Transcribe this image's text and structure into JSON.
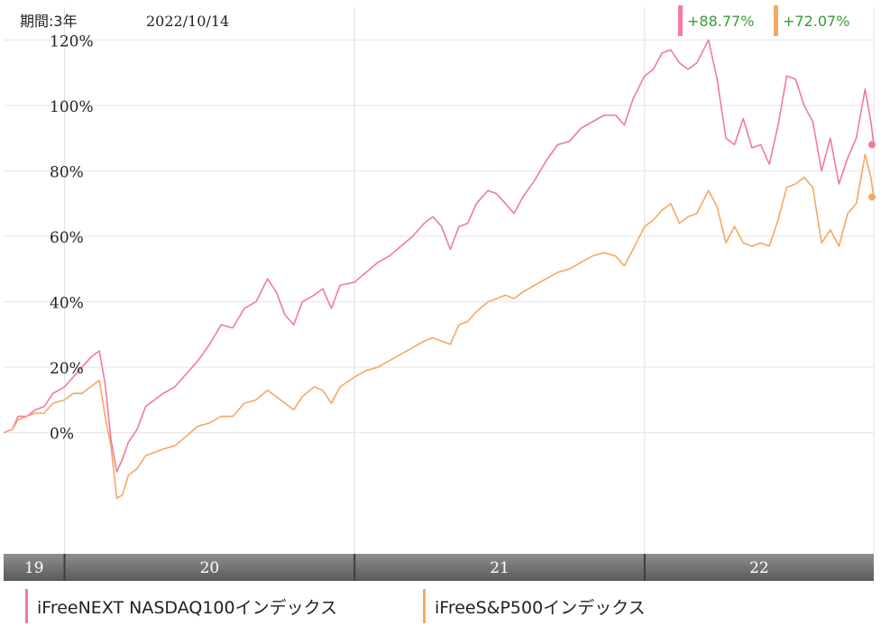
{
  "header": {
    "period_label": "期間:3年",
    "date_label": "2022/10/14"
  },
  "badges": [
    {
      "text": "+88.77%",
      "color": "#f07aa0"
    },
    {
      "text": "+72.07%",
      "color": "#f5a862"
    }
  ],
  "colors": {
    "series_1": "#f07aa0",
    "series_2": "#f5a862",
    "badge_text": "#3a9a3a"
  },
  "legend": [
    {
      "label": "iFreeNEXT NASDAQ100インデックス",
      "color": "#f07aa0"
    },
    {
      "label": "iFreeS&P500インデックス",
      "color": "#f5a862"
    }
  ],
  "chart_data": {
    "type": "line",
    "title": "",
    "xlabel": "",
    "ylabel": "",
    "yticks": [
      "120%",
      "100%",
      "80%",
      "60%",
      "40%",
      "20%",
      "0%"
    ],
    "ytick_values": [
      120,
      100,
      80,
      60,
      40,
      20,
      0
    ],
    "ylim": [
      -37,
      130
    ],
    "xlim": [
      2019.79,
      2022.79
    ],
    "year_labels": [
      {
        "label": "19",
        "x": 2019.79
      },
      {
        "label": "20",
        "x": 2020.0
      },
      {
        "label": "21",
        "x": 2021.0
      },
      {
        "label": "22",
        "x": 2022.0
      }
    ],
    "grid": true,
    "legend_position": "bottom",
    "series": [
      {
        "name": "iFreeNEXT NASDAQ100インデックス",
        "color": "#f07aa0",
        "points": [
          [
            2019.79,
            0
          ],
          [
            2019.82,
            1
          ],
          [
            2019.84,
            5
          ],
          [
            2019.87,
            5
          ],
          [
            2019.9,
            7
          ],
          [
            2019.93,
            8
          ],
          [
            2019.96,
            12
          ],
          [
            2020.0,
            14
          ],
          [
            2020.03,
            17
          ],
          [
            2020.06,
            20
          ],
          [
            2020.09,
            23
          ],
          [
            2020.12,
            25
          ],
          [
            2020.14,
            15
          ],
          [
            2020.16,
            -2
          ],
          [
            2020.18,
            -12
          ],
          [
            2020.2,
            -8
          ],
          [
            2020.22,
            -3
          ],
          [
            2020.25,
            1
          ],
          [
            2020.28,
            8
          ],
          [
            2020.31,
            10
          ],
          [
            2020.34,
            12
          ],
          [
            2020.38,
            14
          ],
          [
            2020.42,
            18
          ],
          [
            2020.46,
            22
          ],
          [
            2020.5,
            27
          ],
          [
            2020.54,
            33
          ],
          [
            2020.58,
            32
          ],
          [
            2020.62,
            38
          ],
          [
            2020.66,
            40
          ],
          [
            2020.7,
            47
          ],
          [
            2020.73,
            43
          ],
          [
            2020.76,
            36
          ],
          [
            2020.79,
            33
          ],
          [
            2020.82,
            40
          ],
          [
            2020.86,
            42
          ],
          [
            2020.89,
            44
          ],
          [
            2020.92,
            38
          ],
          [
            2020.95,
            45
          ],
          [
            2021.0,
            46
          ],
          [
            2021.04,
            49
          ],
          [
            2021.08,
            52
          ],
          [
            2021.12,
            54
          ],
          [
            2021.16,
            57
          ],
          [
            2021.2,
            60
          ],
          [
            2021.24,
            64
          ],
          [
            2021.27,
            66
          ],
          [
            2021.3,
            63
          ],
          [
            2021.33,
            56
          ],
          [
            2021.36,
            63
          ],
          [
            2021.39,
            64
          ],
          [
            2021.42,
            70
          ],
          [
            2021.46,
            74
          ],
          [
            2021.49,
            73
          ],
          [
            2021.52,
            70
          ],
          [
            2021.55,
            67
          ],
          [
            2021.58,
            72
          ],
          [
            2021.62,
            77
          ],
          [
            2021.66,
            83
          ],
          [
            2021.7,
            88
          ],
          [
            2021.74,
            89
          ],
          [
            2021.78,
            93
          ],
          [
            2021.82,
            95
          ],
          [
            2021.86,
            97
          ],
          [
            2021.9,
            97
          ],
          [
            2021.93,
            94
          ],
          [
            2021.96,
            102
          ],
          [
            2022.0,
            109
          ],
          [
            2022.03,
            111
          ],
          [
            2022.06,
            116
          ],
          [
            2022.09,
            117
          ],
          [
            2022.12,
            113
          ],
          [
            2022.15,
            111
          ],
          [
            2022.18,
            113
          ],
          [
            2022.22,
            120
          ],
          [
            2022.25,
            108
          ],
          [
            2022.28,
            90
          ],
          [
            2022.31,
            88
          ],
          [
            2022.34,
            96
          ],
          [
            2022.37,
            87
          ],
          [
            2022.4,
            88
          ],
          [
            2022.43,
            82
          ],
          [
            2022.46,
            94
          ],
          [
            2022.49,
            109
          ],
          [
            2022.52,
            108
          ],
          [
            2022.55,
            100
          ],
          [
            2022.58,
            95
          ],
          [
            2022.61,
            80
          ],
          [
            2022.64,
            90
          ],
          [
            2022.67,
            76
          ],
          [
            2022.7,
            84
          ],
          [
            2022.73,
            90
          ],
          [
            2022.76,
            105
          ],
          [
            2022.78,
            95
          ],
          [
            2022.79,
            88
          ]
        ]
      },
      {
        "name": "iFreeS&P500インデックス",
        "color": "#f5a862",
        "points": [
          [
            2019.79,
            0
          ],
          [
            2019.82,
            1
          ],
          [
            2019.84,
            4
          ],
          [
            2019.87,
            5
          ],
          [
            2019.9,
            6
          ],
          [
            2019.93,
            6
          ],
          [
            2019.96,
            9
          ],
          [
            2020.0,
            10
          ],
          [
            2020.03,
            12
          ],
          [
            2020.06,
            12
          ],
          [
            2020.09,
            14
          ],
          [
            2020.12,
            16
          ],
          [
            2020.14,
            5
          ],
          [
            2020.16,
            -4
          ],
          [
            2020.18,
            -20
          ],
          [
            2020.2,
            -19
          ],
          [
            2020.22,
            -13
          ],
          [
            2020.25,
            -11
          ],
          [
            2020.28,
            -7
          ],
          [
            2020.31,
            -6
          ],
          [
            2020.34,
            -5
          ],
          [
            2020.38,
            -4
          ],
          [
            2020.42,
            -1
          ],
          [
            2020.46,
            2
          ],
          [
            2020.5,
            3
          ],
          [
            2020.54,
            5
          ],
          [
            2020.58,
            5
          ],
          [
            2020.62,
            9
          ],
          [
            2020.66,
            10
          ],
          [
            2020.7,
            13
          ],
          [
            2020.73,
            11
          ],
          [
            2020.76,
            9
          ],
          [
            2020.79,
            7
          ],
          [
            2020.82,
            11
          ],
          [
            2020.86,
            14
          ],
          [
            2020.89,
            13
          ],
          [
            2020.92,
            9
          ],
          [
            2020.95,
            14
          ],
          [
            2021.0,
            17
          ],
          [
            2021.04,
            19
          ],
          [
            2021.08,
            20
          ],
          [
            2021.12,
            22
          ],
          [
            2021.16,
            24
          ],
          [
            2021.2,
            26
          ],
          [
            2021.24,
            28
          ],
          [
            2021.27,
            29
          ],
          [
            2021.3,
            28
          ],
          [
            2021.33,
            27
          ],
          [
            2021.36,
            33
          ],
          [
            2021.39,
            34
          ],
          [
            2021.42,
            37
          ],
          [
            2021.46,
            40
          ],
          [
            2021.49,
            41
          ],
          [
            2021.52,
            42
          ],
          [
            2021.55,
            41
          ],
          [
            2021.58,
            43
          ],
          [
            2021.62,
            45
          ],
          [
            2021.66,
            47
          ],
          [
            2021.7,
            49
          ],
          [
            2021.74,
            50
          ],
          [
            2021.78,
            52
          ],
          [
            2021.82,
            54
          ],
          [
            2021.86,
            55
          ],
          [
            2021.9,
            54
          ],
          [
            2021.93,
            51
          ],
          [
            2021.96,
            56
          ],
          [
            2022.0,
            63
          ],
          [
            2022.03,
            65
          ],
          [
            2022.06,
            68
          ],
          [
            2022.09,
            70
          ],
          [
            2022.12,
            64
          ],
          [
            2022.15,
            66
          ],
          [
            2022.18,
            67
          ],
          [
            2022.22,
            74
          ],
          [
            2022.25,
            69
          ],
          [
            2022.28,
            58
          ],
          [
            2022.31,
            63
          ],
          [
            2022.34,
            58
          ],
          [
            2022.37,
            57
          ],
          [
            2022.4,
            58
          ],
          [
            2022.43,
            57
          ],
          [
            2022.46,
            65
          ],
          [
            2022.49,
            75
          ],
          [
            2022.52,
            76
          ],
          [
            2022.55,
            78
          ],
          [
            2022.58,
            75
          ],
          [
            2022.61,
            58
          ],
          [
            2022.64,
            62
          ],
          [
            2022.67,
            57
          ],
          [
            2022.7,
            67
          ],
          [
            2022.73,
            70
          ],
          [
            2022.76,
            85
          ],
          [
            2022.78,
            78
          ],
          [
            2022.79,
            72
          ]
        ]
      }
    ]
  }
}
